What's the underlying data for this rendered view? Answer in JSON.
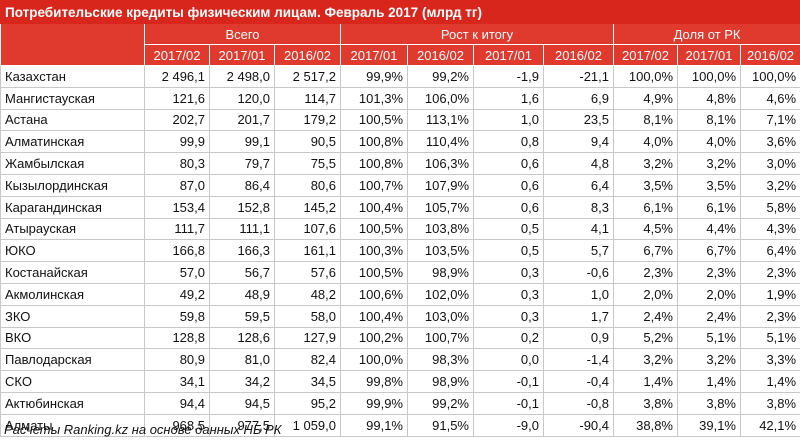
{
  "title": "Потребительские кредиты физическим лицам. Февраль 2017 (млрд тг)",
  "groups": [
    "Всего",
    "Рост к итогу",
    "Доля от РК"
  ],
  "subheaders": [
    "2017/02",
    "2017/01",
    "2016/02",
    "2017/01",
    "2016/02",
    "2017/01",
    "2016/02",
    "2017/02",
    "2017/01",
    "2016/02"
  ],
  "rows": [
    [
      "Казахстан",
      "2 496,1",
      "2 498,0",
      "2 517,2",
      "99,9%",
      "99,2%",
      "-1,9",
      "-21,1",
      "100,0%",
      "100,0%",
      "100,0%"
    ],
    [
      "Мангистауская",
      "121,6",
      "120,0",
      "114,7",
      "101,3%",
      "106,0%",
      "1,6",
      "6,9",
      "4,9%",
      "4,8%",
      "4,6%"
    ],
    [
      "Астана",
      "202,7",
      "201,7",
      "179,2",
      "100,5%",
      "113,1%",
      "1,0",
      "23,5",
      "8,1%",
      "8,1%",
      "7,1%"
    ],
    [
      "Алматинская",
      "99,9",
      "99,1",
      "90,5",
      "100,8%",
      "110,4%",
      "0,8",
      "9,4",
      "4,0%",
      "4,0%",
      "3,6%"
    ],
    [
      "Жамбылская",
      "80,3",
      "79,7",
      "75,5",
      "100,8%",
      "106,3%",
      "0,6",
      "4,8",
      "3,2%",
      "3,2%",
      "3,0%"
    ],
    [
      "Кызылординская",
      "87,0",
      "86,4",
      "80,6",
      "100,7%",
      "107,9%",
      "0,6",
      "6,4",
      "3,5%",
      "3,5%",
      "3,2%"
    ],
    [
      "Карагандинская",
      "153,4",
      "152,8",
      "145,2",
      "100,4%",
      "105,7%",
      "0,6",
      "8,3",
      "6,1%",
      "6,1%",
      "5,8%"
    ],
    [
      "Атырауская",
      "111,7",
      "111,1",
      "107,6",
      "100,5%",
      "103,8%",
      "0,5",
      "4,1",
      "4,5%",
      "4,4%",
      "4,3%"
    ],
    [
      "ЮКО",
      "166,8",
      "166,3",
      "161,1",
      "100,3%",
      "103,5%",
      "0,5",
      "5,7",
      "6,7%",
      "6,7%",
      "6,4%"
    ],
    [
      "Костанайская",
      "57,0",
      "56,7",
      "57,6",
      "100,5%",
      "98,9%",
      "0,3",
      "-0,6",
      "2,3%",
      "2,3%",
      "2,3%"
    ],
    [
      "Акмолинская",
      "49,2",
      "48,9",
      "48,2",
      "100,6%",
      "102,0%",
      "0,3",
      "1,0",
      "2,0%",
      "2,0%",
      "1,9%"
    ],
    [
      "ЗКО",
      "59,8",
      "59,5",
      "58,0",
      "100,4%",
      "103,0%",
      "0,3",
      "1,7",
      "2,4%",
      "2,4%",
      "2,3%"
    ],
    [
      "ВКО",
      "128,8",
      "128,6",
      "127,9",
      "100,2%",
      "100,7%",
      "0,2",
      "0,9",
      "5,2%",
      "5,1%",
      "5,1%"
    ],
    [
      "Павлодарская",
      "80,9",
      "81,0",
      "82,4",
      "100,0%",
      "98,3%",
      "0,0",
      "-1,4",
      "3,2%",
      "3,2%",
      "3,3%"
    ],
    [
      "СКО",
      "34,1",
      "34,2",
      "34,5",
      "99,8%",
      "98,9%",
      "-0,1",
      "-0,4",
      "1,4%",
      "1,4%",
      "1,4%"
    ],
    [
      "Актюбинская",
      "94,4",
      "94,5",
      "95,2",
      "99,9%",
      "99,2%",
      "-0,1",
      "-0,8",
      "3,8%",
      "3,8%",
      "3,8%"
    ],
    [
      "Алматы",
      "968,5",
      "977,5",
      "1 059,0",
      "99,1%",
      "91,5%",
      "-9,0",
      "-90,4",
      "38,8%",
      "39,1%",
      "42,1%"
    ]
  ],
  "footer": "Расчеты Ranking.kz на основе данных НБ РК",
  "colors": {
    "header_bg": "#e0392e",
    "title_bg": "#d9261c",
    "grid": "#c8c8c8"
  }
}
